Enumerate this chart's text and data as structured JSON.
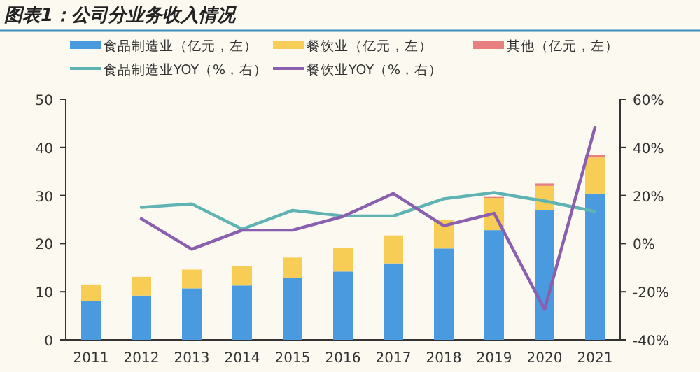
{
  "chart_data": {
    "type": "bar",
    "title": "图表1：公司分业务收入情况",
    "stacked": true,
    "legend": "top",
    "categories": [
      "2011",
      "2012",
      "2013",
      "2014",
      "2015",
      "2016",
      "2017",
      "2018",
      "2019",
      "2020",
      "2021"
    ],
    "series": [
      {
        "name": "食品制造业（亿元，左）",
        "color": "#4a9ae0",
        "values": [
          8.0,
          9.2,
          10.7,
          11.3,
          12.8,
          14.2,
          15.9,
          19.0,
          22.8,
          27.0,
          30.4
        ]
      },
      {
        "name": "餐饮业（亿元，左）",
        "color": "#f7cd55",
        "values": [
          3.5,
          3.9,
          3.9,
          4.0,
          4.3,
          4.9,
          5.8,
          6.0,
          6.7,
          5.0,
          7.5
        ]
      },
      {
        "name": "其他（亿元，左）",
        "color": "#e88080",
        "values": [
          0,
          0,
          0,
          0,
          0,
          0,
          0,
          0,
          0.2,
          0.5,
          0.5
        ]
      },
      {
        "name": "食品制造业YOY（%，右）",
        "color": "#5fb3b3",
        "type": "line",
        "axis": "y2",
        "values": [
          null,
          15.1,
          16.5,
          6.0,
          13.8,
          11.5,
          11.5,
          18.6,
          21.2,
          17.7,
          13.4
        ]
      },
      {
        "name": "餐饮业YOY（%，右）",
        "color": "#8a5fb0",
        "type": "line",
        "axis": "y2",
        "values": [
          null,
          10.3,
          -2.3,
          5.6,
          5.6,
          11.3,
          20.8,
          7.4,
          12.6,
          -27.4,
          48.3
        ]
      }
    ],
    "ylim": [
      0,
      50
    ],
    "yticks": [
      0,
      10,
      20,
      30,
      40,
      50
    ],
    "y2lim": [
      -40,
      60
    ],
    "y2ticks": [
      {
        "value": -40,
        "label": "-40%"
      },
      {
        "value": -20,
        "label": "-20%"
      },
      {
        "value": 0,
        "label": "0%"
      },
      {
        "value": 20,
        "label": "20%"
      },
      {
        "value": 40,
        "label": "40%"
      },
      {
        "value": 60,
        "label": "60%"
      }
    ]
  }
}
